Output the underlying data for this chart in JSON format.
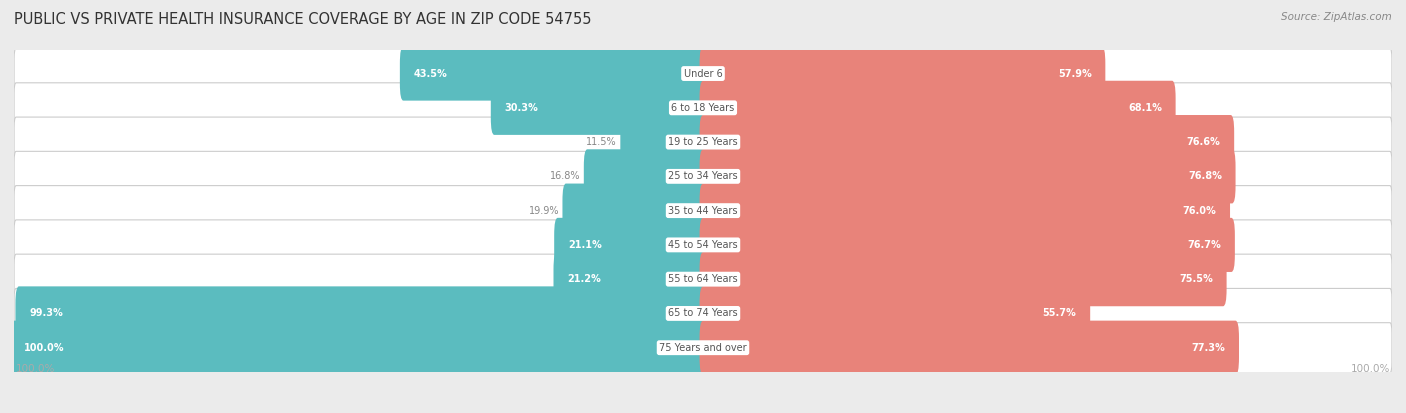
{
  "title": "PUBLIC VS PRIVATE HEALTH INSURANCE COVERAGE BY AGE IN ZIP CODE 54755",
  "source": "Source: ZipAtlas.com",
  "categories": [
    "Under 6",
    "6 to 18 Years",
    "19 to 25 Years",
    "25 to 34 Years",
    "35 to 44 Years",
    "45 to 54 Years",
    "55 to 64 Years",
    "65 to 74 Years",
    "75 Years and over"
  ],
  "public_values": [
    43.5,
    30.3,
    11.5,
    16.8,
    19.9,
    21.1,
    21.2,
    99.3,
    100.0
  ],
  "private_values": [
    57.9,
    68.1,
    76.6,
    76.8,
    76.0,
    76.7,
    75.5,
    55.7,
    77.3
  ],
  "public_color": "#5bbcbf",
  "private_color": "#e8837a",
  "private_color_light": "#f0b8b3",
  "bg_color": "#ebebeb",
  "bar_bg_color": "#ffffff",
  "title_color": "#333333",
  "value_label_outside_color": "#888888",
  "value_label_inside_color": "#ffffff",
  "axis_label_color": "#aaaaaa",
  "legend_label_color": "#555555",
  "cat_label_color": "#555555"
}
